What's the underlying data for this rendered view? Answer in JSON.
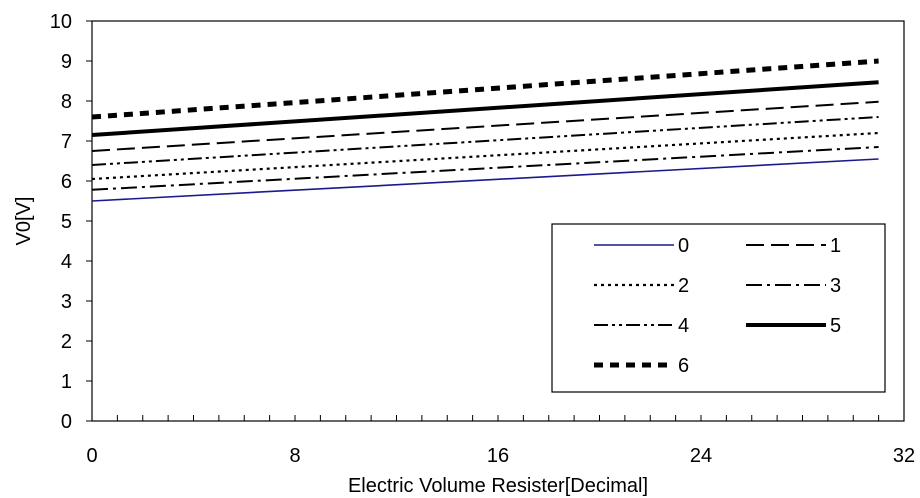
{
  "chart_data": {
    "type": "line",
    "title": "",
    "xlabel": "Electric Volume Resister[Decimal]",
    "ylabel": "V0[V]",
    "xlim": [
      0,
      32
    ],
    "ylim": [
      0,
      10
    ],
    "x_ticks": [
      0,
      8,
      16,
      24,
      32
    ],
    "y_ticks": [
      0,
      1,
      2,
      3,
      4,
      5,
      6,
      7,
      8,
      9,
      10
    ],
    "grid": false,
    "legend_position": "bottom-right",
    "series": [
      {
        "name": "0",
        "style": "solid-thin",
        "color": "#1a1a8c",
        "x": [
          0,
          31
        ],
        "values": [
          5.5,
          6.55
        ]
      },
      {
        "name": "1",
        "style": "long-dash",
        "color": "#000000",
        "x": [
          0,
          31
        ],
        "values": [
          6.75,
          7.98
        ]
      },
      {
        "name": "2",
        "style": "dotted",
        "color": "#000000",
        "x": [
          0,
          31
        ],
        "values": [
          6.05,
          7.2
        ]
      },
      {
        "name": "3",
        "style": "dash-dot",
        "color": "#000000",
        "x": [
          0,
          31
        ],
        "values": [
          5.78,
          6.85
        ]
      },
      {
        "name": "4",
        "style": "dash-dot-dot",
        "color": "#000000",
        "x": [
          0,
          31
        ],
        "values": [
          6.4,
          7.6
        ]
      },
      {
        "name": "5",
        "style": "solid-thick",
        "color": "#000000",
        "x": [
          0,
          31
        ],
        "values": [
          7.15,
          8.47
        ]
      },
      {
        "name": "6",
        "style": "thick-dash",
        "color": "#000000",
        "x": [
          0,
          31
        ],
        "values": [
          7.6,
          9.0
        ]
      }
    ]
  }
}
